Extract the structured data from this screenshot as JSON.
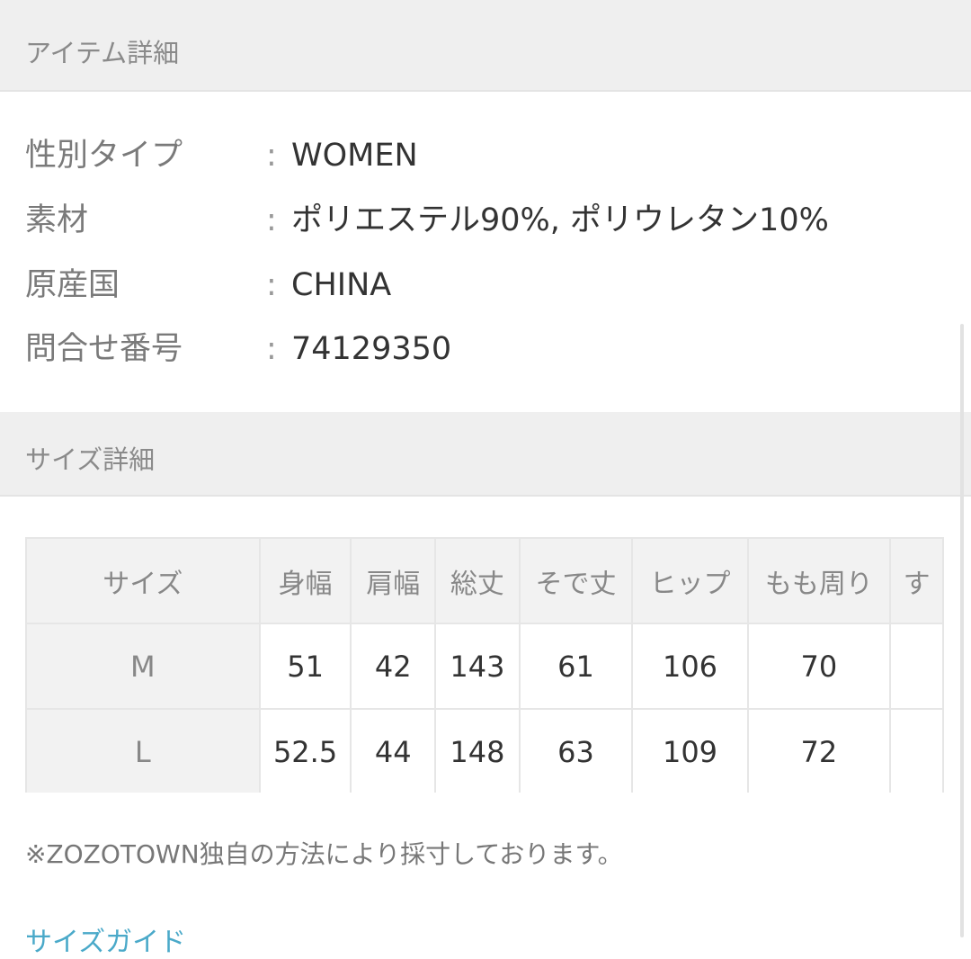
{
  "item_section": {
    "title": "アイテム詳細",
    "separator": ":",
    "rows": [
      {
        "label": "性別タイプ",
        "value": "WOMEN"
      },
      {
        "label": "素材",
        "value": "ポリエステル90%, ポリウレタン10%"
      },
      {
        "label": "原産国",
        "value": "CHINA"
      },
      {
        "label": "問合せ番号",
        "value": "74129350"
      }
    ]
  },
  "size_section": {
    "title": "サイズ詳細",
    "table": {
      "header": [
        "サイズ",
        "身幅",
        "肩幅",
        "総丈",
        "そで丈",
        "ヒップ",
        "もも周り",
        "す"
      ],
      "rows": [
        [
          "M",
          "51",
          "42",
          "143",
          "61",
          "106",
          "70",
          ""
        ],
        [
          "L",
          "52.5",
          "44",
          "148",
          "63",
          "109",
          "72",
          ""
        ]
      ]
    },
    "note": "※ZOZOTOWN独自の方法により採寸しております。",
    "link": "サイズガイド"
  }
}
